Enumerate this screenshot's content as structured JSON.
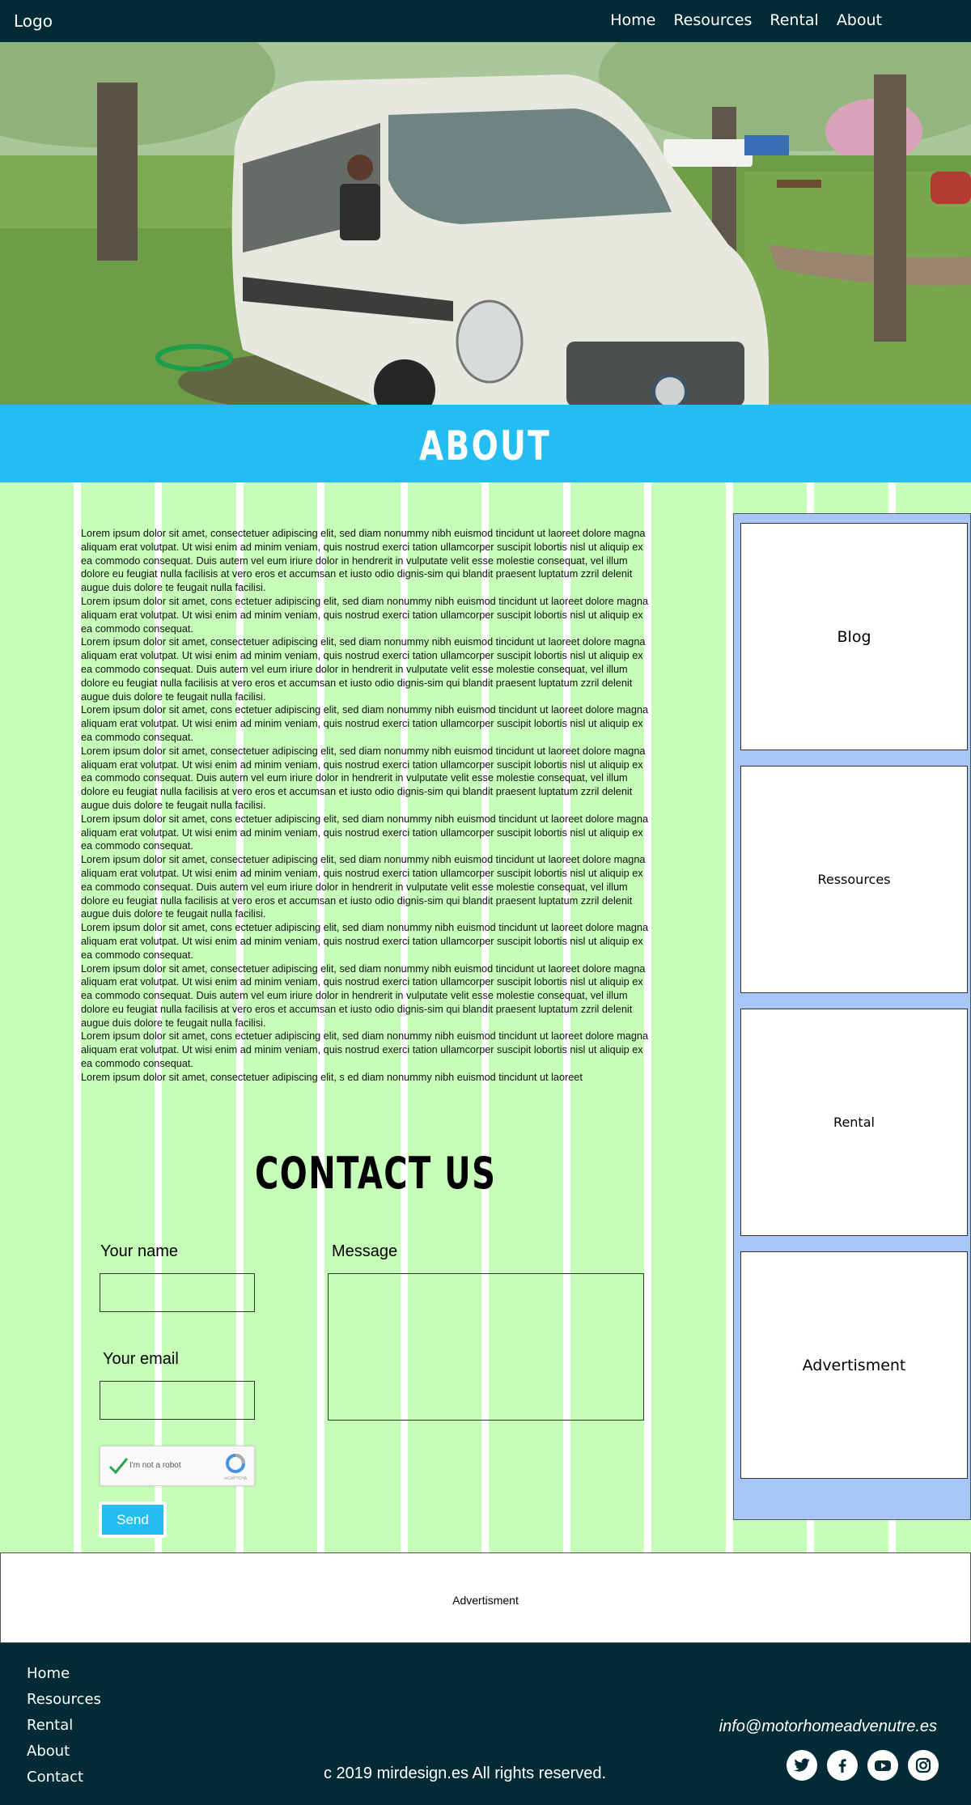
{
  "nav": {
    "logo": "Logo",
    "links": [
      "Home",
      "Resources",
      "Rental",
      "About"
    ]
  },
  "hero": {
    "image_icon": "camper-van-photo"
  },
  "about": {
    "title": "ABOUT"
  },
  "lorem": {
    "paragraphs": [
      "Lorem ipsum dolor sit amet, consectetuer adipiscing elit, sed diam nonummy nibh euismod tincidunt ut laoreet dolore magna aliquam erat volutpat. Ut wisi enim ad minim veniam, quis nostrud exerci tation ullamcorper suscipit lobortis nisl ut aliquip ex ea commodo consequat. Duis autem vel eum iriure dolor in hendrerit in vulputate velit esse molestie consequat, vel illum dolore eu feugiat nulla facilisis at vero eros et accumsan et iusto odio dignis-sim qui blandit praesent luptatum zzril delenit augue duis dolore te feugait nulla facilisi.",
      "Lorem ipsum dolor sit amet, cons ectetuer adipiscing elit, sed diam nonummy nibh euismod tincidunt ut laoreet dolore magna aliquam erat volutpat. Ut wisi enim ad minim veniam, quis nostrud exerci tation ullamcorper suscipit lobortis nisl ut aliquip ex ea commodo consequat.",
      "Lorem ipsum dolor sit amet, consectetuer adipiscing elit, sed diam nonummy nibh euismod tincidunt ut laoreet dolore magna aliquam erat volutpat. Ut wisi enim ad minim veniam, quis nostrud exerci tation ullamcorper suscipit lobortis nisl ut aliquip ex ea commodo consequat. Duis autem vel eum iriure dolor in hendrerit in vulputate velit esse molestie consequat, vel illum dolore eu feugiat nulla facilisis at vero eros et accumsan et iusto odio dignis-sim qui blandit praesent luptatum zzril delenit augue duis dolore te feugait nulla facilisi.",
      "Lorem ipsum dolor sit amet, cons ectetuer adipiscing elit, sed diam nonummy nibh euismod tincidunt ut laoreet dolore magna aliquam erat volutpat. Ut wisi enim ad minim veniam, quis nostrud exerci tation ullamcorper suscipit lobortis nisl ut aliquip ex ea commodo consequat.",
      "Lorem ipsum dolor sit amet, consectetuer adipiscing elit, sed diam nonummy nibh euismod tincidunt ut laoreet dolore magna aliquam erat volutpat. Ut wisi enim ad minim veniam, quis nostrud exerci tation ullamcorper suscipit lobortis nisl ut aliquip ex ea commodo consequat. Duis autem vel eum iriure dolor in hendrerit in vulputate velit esse molestie consequat, vel illum dolore eu feugiat nulla facilisis at vero eros et accumsan et iusto odio dignis-sim qui blandit praesent luptatum zzril delenit augue duis dolore te feugait nulla facilisi.",
      "Lorem ipsum dolor sit amet, cons ectetuer adipiscing elit, sed diam nonummy nibh euismod tincidunt ut laoreet dolore magna aliquam erat volutpat. Ut wisi enim ad minim veniam, quis nostrud exerci tation ullamcorper suscipit lobortis nisl ut aliquip ex ea commodo consequat.",
      "Lorem ipsum dolor sit amet, consectetuer adipiscing elit, sed diam nonummy nibh euismod tincidunt ut laoreet dolore magna aliquam erat volutpat. Ut wisi enim ad minim veniam, quis nostrud exerci tation ullamcorper suscipit lobortis nisl ut aliquip ex ea commodo consequat. Duis autem vel eum iriure dolor in hendrerit in vulputate velit esse molestie consequat, vel illum dolore eu feugiat nulla facilisis at vero eros et accumsan et iusto odio dignis-sim qui blandit praesent luptatum zzril delenit augue duis dolore te feugait nulla facilisi.",
      "Lorem ipsum dolor sit amet, cons ectetuer adipiscing elit, sed diam nonummy nibh euismod tincidunt ut laoreet dolore magna aliquam erat volutpat. Ut wisi enim ad minim veniam, quis nostrud exerci tation ullamcorper suscipit lobortis nisl ut aliquip ex ea commodo consequat.",
      "Lorem ipsum dolor sit amet, consectetuer adipiscing elit, sed diam nonummy nibh euismod tincidunt ut laoreet dolore magna aliquam erat volutpat. Ut wisi enim ad minim veniam, quis nostrud exerci tation ullamcorper suscipit lobortis nisl ut aliquip ex ea commodo consequat. Duis autem vel eum iriure dolor in hendrerit in vulputate velit esse molestie consequat, vel illum dolore eu feugiat nulla facilisis at vero eros et accumsan et iusto odio dignis-sim qui blandit praesent luptatum zzril delenit augue duis dolore te feugait nulla facilisi.",
      "Lorem ipsum dolor sit amet, cons ectetuer adipiscing elit, sed diam nonummy nibh euismod tincidunt ut laoreet dolore magna aliquam erat volutpat. Ut wisi enim ad minim veniam, quis nostrud exerci tation ullamcorper suscipit lobortis nisl ut aliquip ex ea commodo consequat.",
      "Lorem ipsum dolor sit amet, consectetuer adipiscing elit, s ed diam nonummy nibh euismod tincidunt ut laoreet"
    ]
  },
  "contact": {
    "title": "CONTACT US",
    "name_label": "Your name",
    "email_label": "Your email",
    "message_label": "Message",
    "captcha_label": "I'm not a robot",
    "captcha_brand": "reCAPTCHA",
    "send_label": "Send"
  },
  "sidebar": {
    "cards": [
      "Blog",
      "Ressources",
      "Rental",
      "Advertisment"
    ]
  },
  "ad": {
    "label": "Advertisment"
  },
  "footer": {
    "links": [
      "Home",
      "Resources",
      "Rental",
      "About",
      "Contact"
    ],
    "email": "info@motorhomeadvenutre.es",
    "copyright": "c 2019 mirdesign.es All rights reserved.",
    "social_icons": [
      "twitter-icon",
      "facebook-icon",
      "youtube-icon",
      "instagram-icon"
    ]
  },
  "colors": {
    "nav_bg": "#032b36",
    "accent": "#23bdf2",
    "stripe_green": "#c6fdb8",
    "sidebar_bg": "#a8c6f5"
  }
}
